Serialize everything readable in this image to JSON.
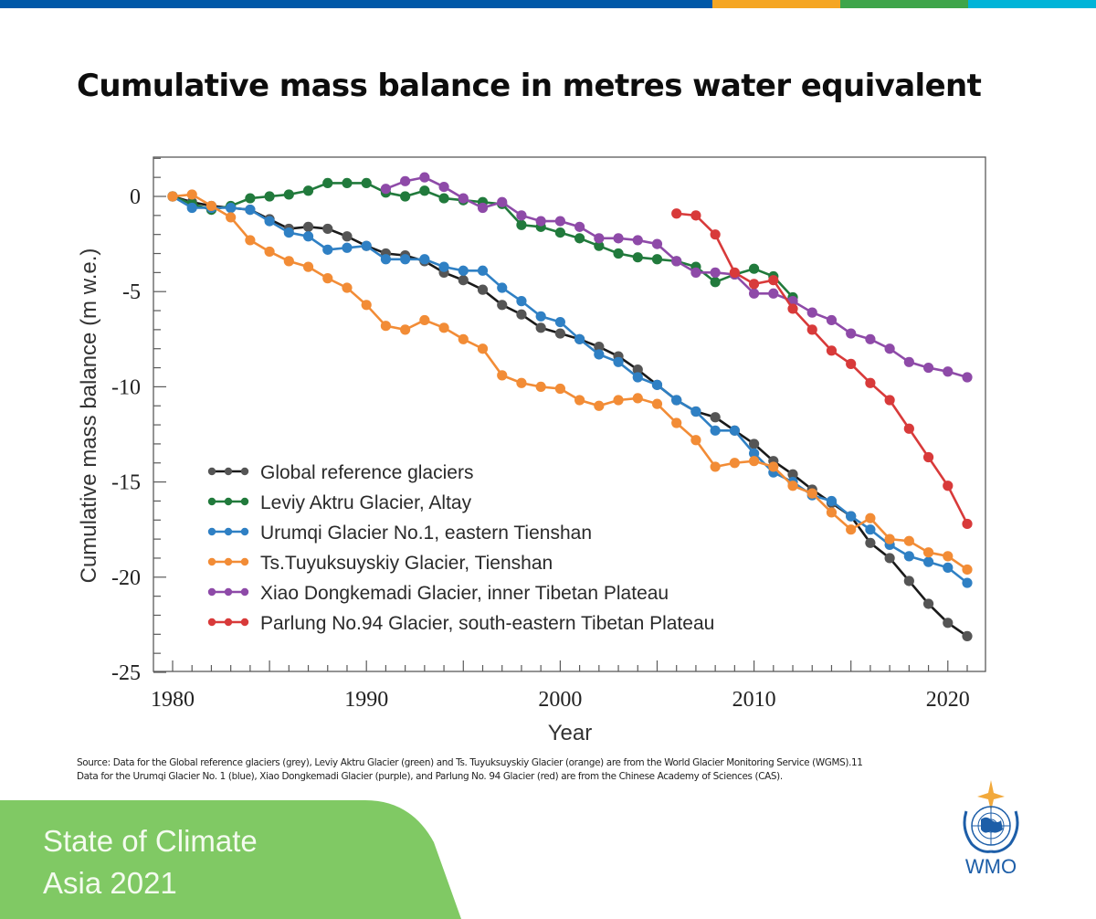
{
  "top_bar": {
    "colors": [
      "#0058a8",
      "#f5a623",
      "#3ea54a",
      "#00b4d8"
    ],
    "fractions": [
      0.65,
      0.117,
      0.116,
      0.117
    ]
  },
  "title": "Cumulative mass balance in metres water equivalent",
  "chart_data": {
    "type": "line",
    "xlabel": "Year",
    "ylabel": "Cumulative mass balance (m w.e.)",
    "xlim": [
      1979.5,
      2022
    ],
    "ylim": [
      -25,
      2
    ],
    "x_ticks": [
      1980,
      1990,
      2000,
      2010,
      2020
    ],
    "y_ticks": [
      0,
      -5,
      -10,
      -15,
      -20,
      -25
    ],
    "grid": false,
    "legend_position": "lower-left",
    "series": [
      {
        "name": "Global reference glaciers",
        "color": "#555555",
        "line_color": "#1a1a1a",
        "x": [
          1980,
          1981,
          1982,
          1983,
          1984,
          1985,
          1986,
          1987,
          1988,
          1989,
          1990,
          1991,
          1992,
          1993,
          1994,
          1995,
          1996,
          1997,
          1998,
          1999,
          2000,
          2001,
          2002,
          2003,
          2004,
          2005,
          2006,
          2007,
          2008,
          2009,
          2010,
          2011,
          2012,
          2013,
          2014,
          2015,
          2016,
          2017,
          2018,
          2019,
          2020,
          2021
        ],
        "y": [
          0,
          -0.3,
          -0.5,
          -0.6,
          -0.7,
          -1.2,
          -1.7,
          -1.6,
          -1.7,
          -2.1,
          -2.6,
          -3.0,
          -3.1,
          -3.4,
          -4.0,
          -4.4,
          -4.9,
          -5.7,
          -6.2,
          -6.9,
          -7.2,
          -7.5,
          -7.9,
          -8.4,
          -9.1,
          -9.9,
          -10.7,
          -11.3,
          -11.6,
          -12.3,
          -13.0,
          -13.9,
          -14.6,
          -15.4,
          -16.1,
          -16.8,
          -18.2,
          -19.0,
          -20.2,
          -21.4,
          -22.4,
          -23.1
        ]
      },
      {
        "name": "Leviy Aktru Glacier, Altay",
        "color": "#217a3c",
        "x": [
          1980,
          1981,
          1982,
          1983,
          1984,
          1985,
          1986,
          1987,
          1988,
          1989,
          1990,
          1991,
          1992,
          1993,
          1994,
          1995,
          1996,
          1997,
          1998,
          1999,
          2000,
          2001,
          2002,
          2003,
          2004,
          2005,
          2006,
          2007,
          2008,
          2009,
          2010,
          2011,
          2012
        ],
        "y": [
          0,
          -0.4,
          -0.7,
          -0.5,
          -0.1,
          0.0,
          0.1,
          0.3,
          0.7,
          0.7,
          0.7,
          0.2,
          0.0,
          0.3,
          -0.1,
          -0.2,
          -0.3,
          -0.4,
          -1.5,
          -1.6,
          -1.9,
          -2.2,
          -2.6,
          -3.0,
          -3.2,
          -3.3,
          -3.4,
          -3.7,
          -4.5,
          -4.1,
          -3.8,
          -4.2,
          -5.3
        ]
      },
      {
        "name": "Urumqi Glacier No.1, eastern Tienshan",
        "color": "#2f80c4",
        "x": [
          1980,
          1981,
          1982,
          1983,
          1984,
          1985,
          1986,
          1987,
          1988,
          1989,
          1990,
          1991,
          1992,
          1993,
          1994,
          1995,
          1996,
          1997,
          1998,
          1999,
          2000,
          2001,
          2002,
          2003,
          2004,
          2005,
          2006,
          2007,
          2008,
          2009,
          2010,
          2011,
          2012,
          2013,
          2014,
          2015,
          2016,
          2017,
          2018,
          2019,
          2020,
          2021
        ],
        "y": [
          0,
          -0.6,
          -0.6,
          -0.6,
          -0.7,
          -1.3,
          -1.9,
          -2.1,
          -2.8,
          -2.7,
          -2.6,
          -3.3,
          -3.3,
          -3.3,
          -3.7,
          -3.9,
          -3.9,
          -4.8,
          -5.5,
          -6.3,
          -6.6,
          -7.5,
          -8.3,
          -8.7,
          -9.5,
          -9.9,
          -10.7,
          -11.3,
          -12.3,
          -12.3,
          -13.5,
          -14.5,
          -15.0,
          -15.7,
          -16.0,
          -16.8,
          -17.5,
          -18.3,
          -18.9,
          -19.2,
          -19.5,
          -20.3
        ]
      },
      {
        "name": "Ts.Tuyuksuyskiy Glacier, Tienshan",
        "color": "#f28c36",
        "x": [
          1980,
          1981,
          1982,
          1983,
          1984,
          1985,
          1986,
          1987,
          1988,
          1989,
          1990,
          1991,
          1992,
          1993,
          1994,
          1995,
          1996,
          1997,
          1998,
          1999,
          2000,
          2001,
          2002,
          2003,
          2004,
          2005,
          2006,
          2007,
          2008,
          2009,
          2010,
          2011,
          2012,
          2013,
          2014,
          2015,
          2016,
          2017,
          2018,
          2019,
          2020,
          2021
        ],
        "y": [
          0,
          0.1,
          -0.5,
          -1.1,
          -2.3,
          -2.9,
          -3.4,
          -3.7,
          -4.3,
          -4.8,
          -5.7,
          -6.8,
          -7.0,
          -6.5,
          -6.9,
          -7.5,
          -8.0,
          -9.4,
          -9.8,
          -10.0,
          -10.1,
          -10.7,
          -11.0,
          -10.7,
          -10.6,
          -10.9,
          -11.9,
          -12.8,
          -14.2,
          -14.0,
          -13.9,
          -14.2,
          -15.2,
          -15.6,
          -16.6,
          -17.5,
          -16.9,
          -18.0,
          -18.1,
          -18.7,
          -18.9,
          -19.6
        ]
      },
      {
        "name": "Xiao Dongkemadi Glacier, inner Tibetan Plateau",
        "color": "#8e4aa8",
        "x": [
          1991,
          1992,
          1993,
          1994,
          1995,
          1996,
          1997,
          1998,
          1999,
          2000,
          2001,
          2002,
          2003,
          2004,
          2005,
          2006,
          2007,
          2008,
          2009,
          2010,
          2011,
          2012,
          2013,
          2014,
          2015,
          2016,
          2017,
          2018,
          2019,
          2020,
          2021
        ],
        "y": [
          0.4,
          0.8,
          1.0,
          0.5,
          -0.1,
          -0.6,
          -0.3,
          -1.0,
          -1.3,
          -1.3,
          -1.6,
          -2.2,
          -2.2,
          -2.3,
          -2.5,
          -3.4,
          -4.0,
          -4.0,
          -4.1,
          -5.1,
          -5.1,
          -5.5,
          -6.1,
          -6.5,
          -7.2,
          -7.5,
          -8.0,
          -8.7,
          -9.0,
          -9.2,
          -9.5
        ]
      },
      {
        "name": "Parlung No.94 Glacier, south-eastern Tibetan Plateau",
        "color": "#d83a3a",
        "x": [
          2006,
          2007,
          2008,
          2009,
          2010,
          2011,
          2012,
          2013,
          2014,
          2015,
          2016,
          2017,
          2018,
          2019,
          2020,
          2021
        ],
        "y": [
          -0.9,
          -1.0,
          -2.0,
          -4.0,
          -4.6,
          -4.4,
          -5.9,
          -7.0,
          -8.1,
          -8.8,
          -9.8,
          -10.7,
          -12.2,
          -13.7,
          -15.2,
          -17.2
        ]
      }
    ]
  },
  "source": {
    "line1": "Source: Data for the Global reference glaciers (grey), Leviy Aktru Glacier (green) and Ts. Tuyuksuyskiy Glacier (orange) are from the World Glacier Monitoring Service (WGMS).11",
    "line2": "Data for the Urumqi Glacier No. 1 (blue), Xiao Dongkemadi Glacier (purple), and Parlung No. 94 Glacier (red) are from the Chinese Academy of Sciences (CAS)."
  },
  "footer": {
    "line1": "State of Climate",
    "line2": "Asia 2021",
    "color": "#80c964"
  },
  "logo": {
    "icon": "wmo-emblem-icon",
    "text": "WMO",
    "color": "#1d5ea8"
  }
}
